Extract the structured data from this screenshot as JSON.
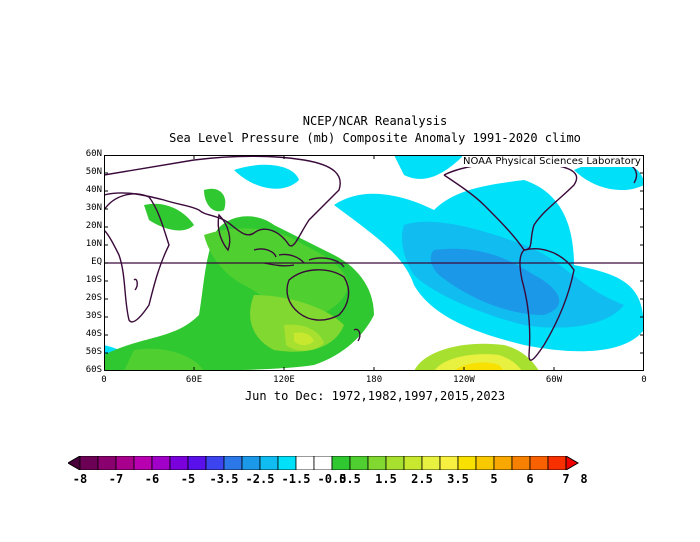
{
  "header": {
    "title": "NCEP/NCAR Reanalysis",
    "subtitle": "Sea Level Pressure (mb) Composite Anomaly 1991-2020 climo"
  },
  "footer": {
    "period": "Jun to Dec: 1972,1982,1997,2015,2023"
  },
  "credit": "NOAA Physical Sciences Laboratory",
  "map": {
    "projection": "cylindrical equidistant",
    "lon_range": [
      0,
      360
    ],
    "lat_range": [
      -60,
      60
    ],
    "equator_line": true,
    "lat_labels": [
      "60N",
      "50N",
      "40N",
      "30N",
      "20N",
      "10N",
      "EQ",
      "10S",
      "20S",
      "30S",
      "40S",
      "50S",
      "60S"
    ],
    "lon_labels": [
      "0",
      "60E",
      "120E",
      "180",
      "120W",
      "60W",
      "0"
    ],
    "pattern": "positive anomalies (green/yellow) over Indian Ocean, maritime continent and Australia; negative anomalies (cyan/blue) over eastern tropical and South Pacific; positive anomaly near 60S 100W"
  },
  "colorbar": {
    "labels": [
      "-8",
      "-7",
      "-6",
      "-5",
      "-3.5",
      "-2.5",
      "-1.5",
      "-0.5",
      "0.5",
      "1.5",
      "2.5",
      "3.5",
      "5",
      "6",
      "7",
      "8"
    ],
    "colors": [
      "#48003a",
      "#6b0055",
      "#8b006f",
      "#a8008c",
      "#b800b0",
      "#a000c8",
      "#7a00dc",
      "#5a10ea",
      "#3c44f0",
      "#2c78e8",
      "#1c98e8",
      "#10bcf0",
      "#00e0f8",
      "#ffffff",
      "#ffffff",
      "#30c830",
      "#50d030",
      "#80d830",
      "#a8e030",
      "#c8e830",
      "#e8f040",
      "#f8f040",
      "#f8e000",
      "#f8c800",
      "#f8a800",
      "#f88000",
      "#f86000",
      "#f83000",
      "#f00000"
    ],
    "units": "mb"
  }
}
